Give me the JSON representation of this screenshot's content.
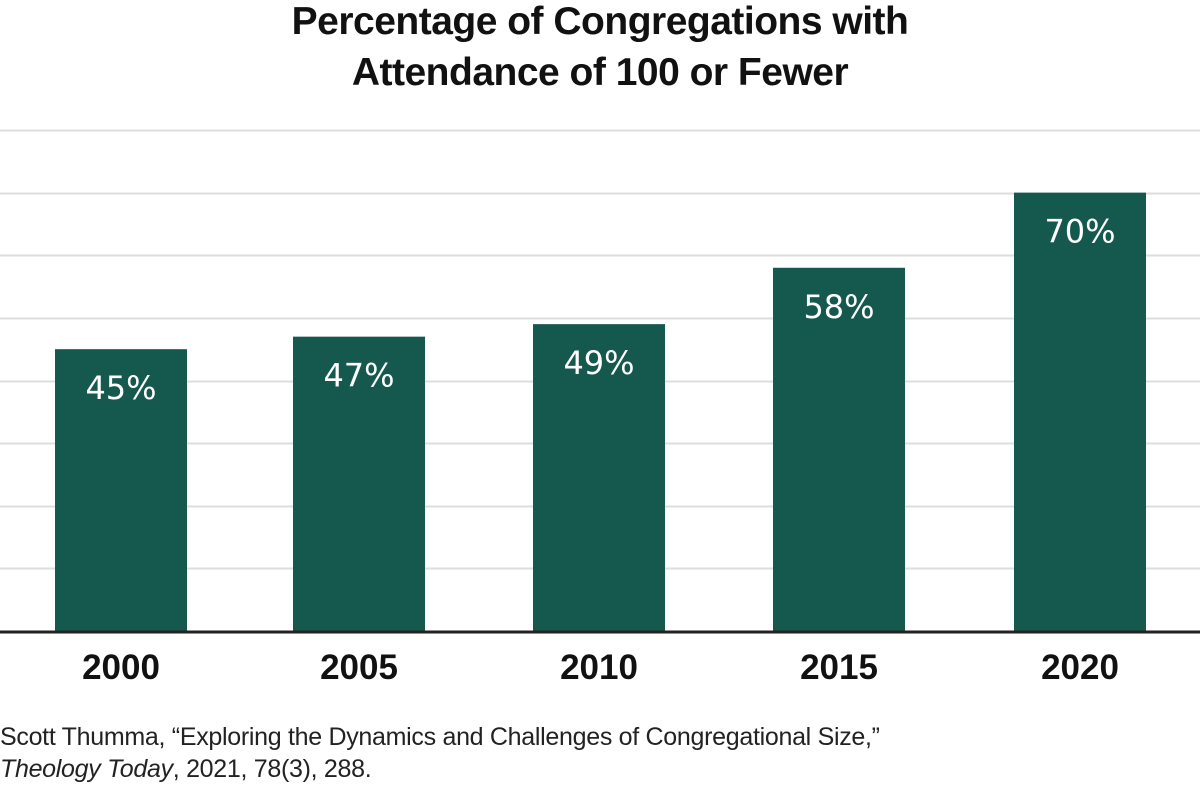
{
  "chart_data": {
    "type": "bar",
    "title": "Percentage of Congregations with Attendance of 100 or Fewer",
    "title_lines": [
      "Percentage of Congregations with",
      "Attendance of 100 or Fewer"
    ],
    "categories": [
      "2000",
      "2005",
      "2010",
      "2015",
      "2020"
    ],
    "values": [
      45,
      47,
      49,
      58,
      70
    ],
    "data_labels": [
      "45%",
      "47%",
      "49%",
      "58%",
      "70%"
    ],
    "xlabel": "",
    "ylabel": "",
    "ylim": [
      0,
      80
    ],
    "y_gridline_step": 10,
    "grid": true,
    "y_tick_labels_shown": false,
    "legend": "none",
    "bar_color": "#15584e",
    "label_color": "#ffffff",
    "gridline_color": "#dddddd",
    "baseline_color": "#222222"
  },
  "source": {
    "line1": "Scott Thumma, “Exploring the Dynamics and Challenges of Congregational Size,”",
    "journal": "Theology Today",
    "line2_rest": ", 2021, 78(3), 288."
  }
}
